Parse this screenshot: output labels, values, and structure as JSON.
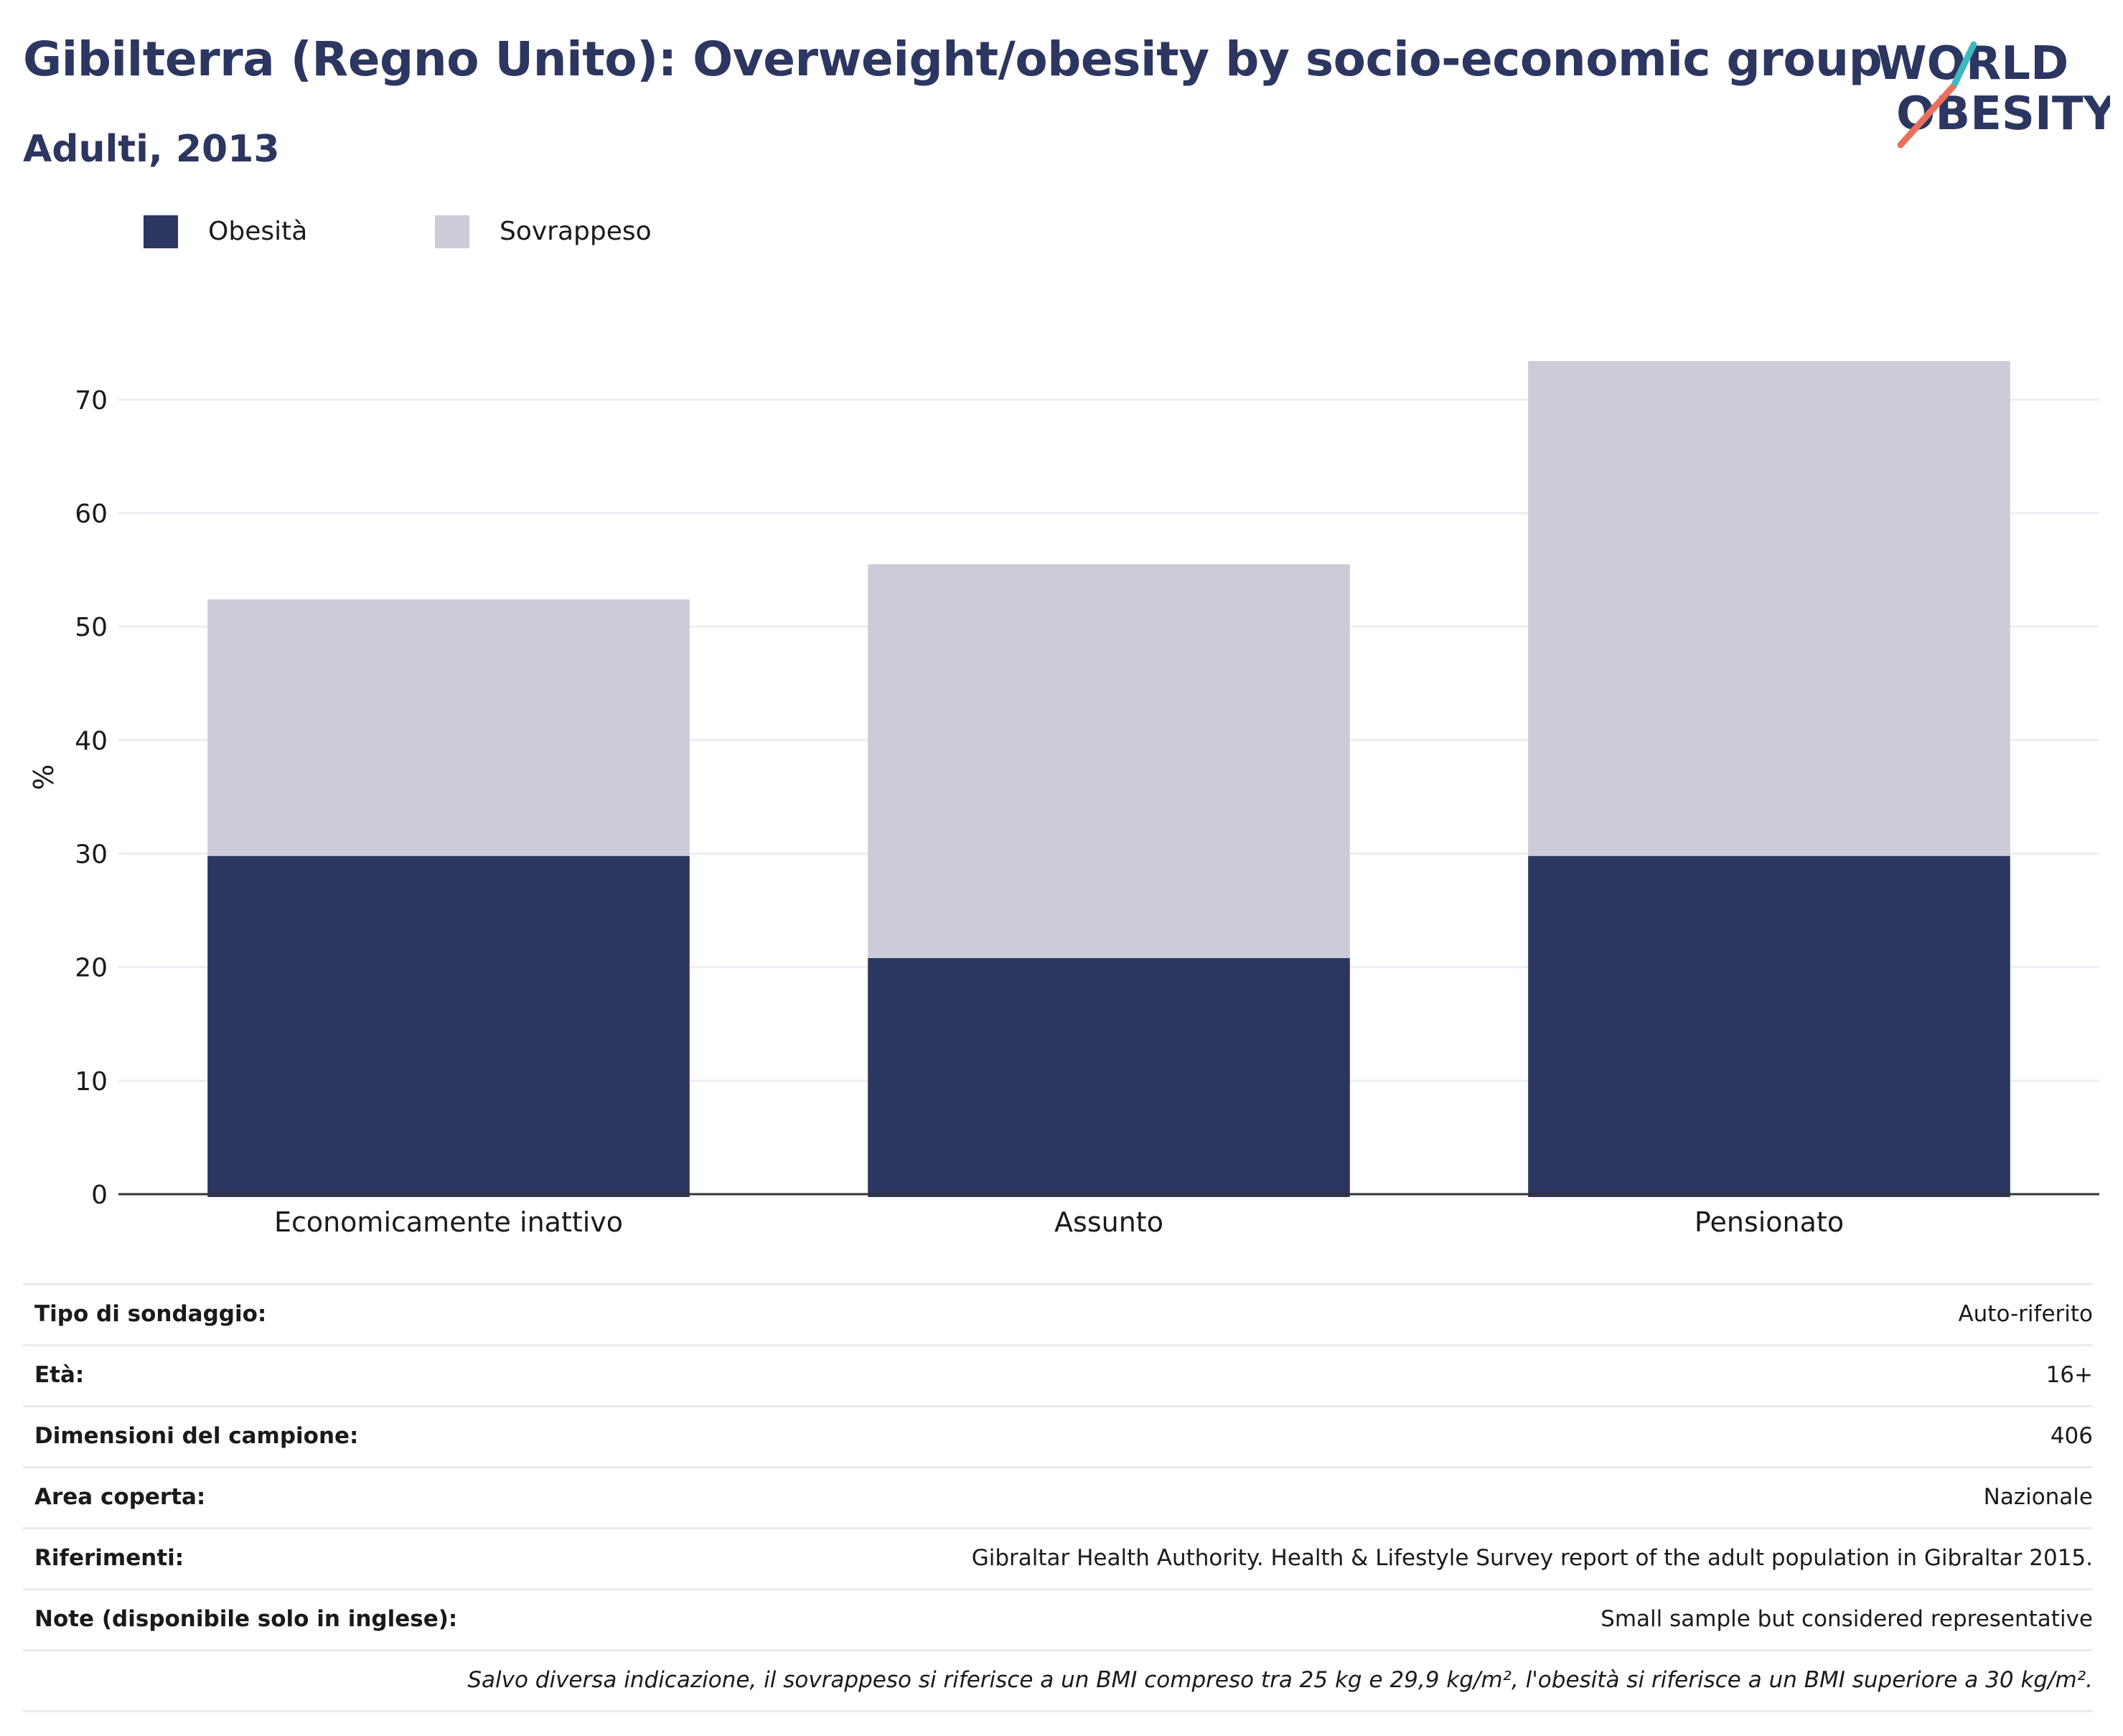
{
  "header": {
    "title": "Gibilterra (Regno Unito): Overweight/obesity by socio-economic group",
    "subtitle": "Adulti, 2013"
  },
  "logo": {
    "line1": "WORLD",
    "line2": "OBESITY",
    "colors": {
      "text": "#2b3661",
      "slash_teal": "#3fb8c1",
      "slash_coral": "#e8705d"
    }
  },
  "colors": {
    "obesity": "#2b3661",
    "overweight": "#cbccd8",
    "grid": "#eceef2",
    "axis": "#333333",
    "text": "#1a1a1a"
  },
  "chart_data": {
    "type": "bar",
    "stacked": true,
    "categories": [
      "Economicamente inattivo",
      "Assunto",
      "Pensionato"
    ],
    "series": [
      {
        "name": "Obesità",
        "values": [
          29.8,
          20.8,
          29.8
        ]
      },
      {
        "name": "Sovrappeso",
        "values": [
          22.6,
          34.7,
          43.6
        ]
      }
    ],
    "ylabel": "%",
    "xlabel": "",
    "ylim": [
      0,
      76
    ],
    "yticks": [
      0,
      10,
      20,
      30,
      40,
      50,
      60,
      70
    ],
    "grid": true,
    "legend_position": "top-left"
  },
  "info": {
    "rows": [
      {
        "label": "Tipo di sondaggio:",
        "value": "Auto-riferito"
      },
      {
        "label": "Età:",
        "value": "16+"
      },
      {
        "label": "Dimensioni del campione:",
        "value": "406"
      },
      {
        "label": "Area coperta:",
        "value": "Nazionale"
      },
      {
        "label": "Riferimenti:",
        "value": "Gibraltar Health Authority. Health & Lifestyle Survey report of the adult population in Gibraltar 2015."
      },
      {
        "label": "Note (disponibile solo in inglese):",
        "value": "Small sample but considered representative"
      }
    ],
    "footnote": "Salvo diversa indicazione, il sovrappeso si riferisce a un BMI compreso tra 25 kg e 29,9 kg/m², l'obesità si riferisce a un BMI superiore a 30 kg/m²."
  }
}
